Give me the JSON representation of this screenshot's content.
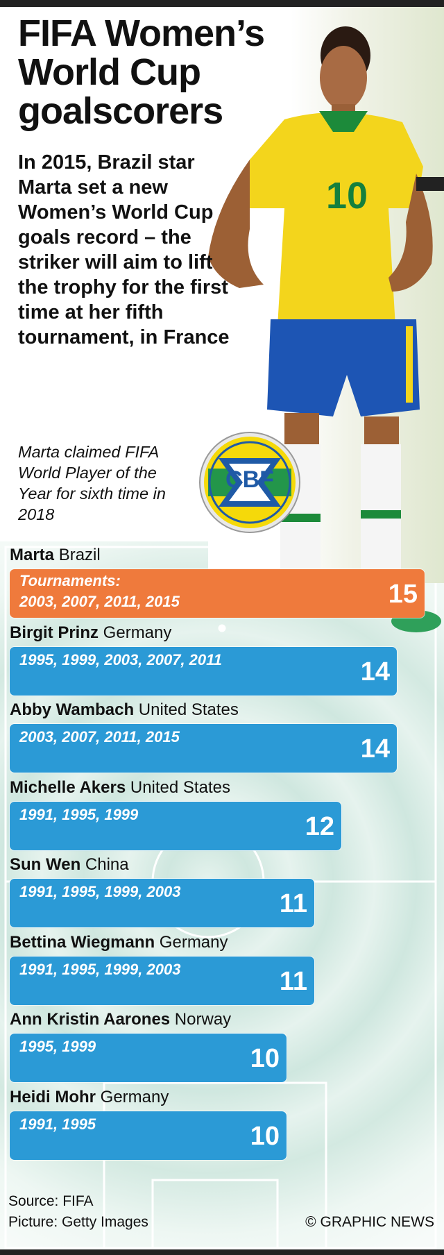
{
  "title": "FIFA Women’s World Cup goalscorers",
  "intro": "In 2015, Brazil star Marta set a new Women’s World Cup goals record – the striker will aim to lift the trophy for the first time at her fifth tournament, in France",
  "note": "Marta claimed FIFA World Player of the Year for sixth time in 2018",
  "badge_text": "CBF",
  "tournaments_caption": "Tournaments:",
  "source": "Source: FIFA",
  "picture": "Picture: Getty Images",
  "credit": "© GRAPHIC NEWS",
  "colors": {
    "highlight": "#ef7a3c",
    "bar": "#2b9ad6",
    "pitch": "#d8ece6",
    "shirt": "#f3d51c",
    "shorts": "#1d55b4"
  },
  "chart_data": {
    "type": "bar",
    "orientation": "horizontal",
    "title": "FIFA Women’s World Cup goalscorers",
    "xlabel": "",
    "ylabel": "",
    "xlim": [
      0,
      15
    ],
    "categories": [
      "Marta",
      "Birgit Prinz",
      "Abby Wambach",
      "Michelle Akers",
      "Sun Wen",
      "Bettina Wiegmann",
      "Ann Kristin Aarones",
      "Heidi Mohr"
    ],
    "countries": [
      "Brazil",
      "Germany",
      "United States",
      "United States",
      "China",
      "Germany",
      "Norway",
      "Germany"
    ],
    "tournaments": [
      "2003, 2007, 2011, 2015",
      "1995, 1999, 2003, 2007, 2011",
      "2003, 2007, 2011, 2015",
      "1991, 1995, 1999",
      "1991, 1995, 1999, 2003",
      "1991, 1995, 1999, 2003",
      "1995, 1999",
      "1991, 1995"
    ],
    "values": [
      15,
      14,
      14,
      12,
      11,
      11,
      10,
      10
    ],
    "highlight_index": 0
  }
}
